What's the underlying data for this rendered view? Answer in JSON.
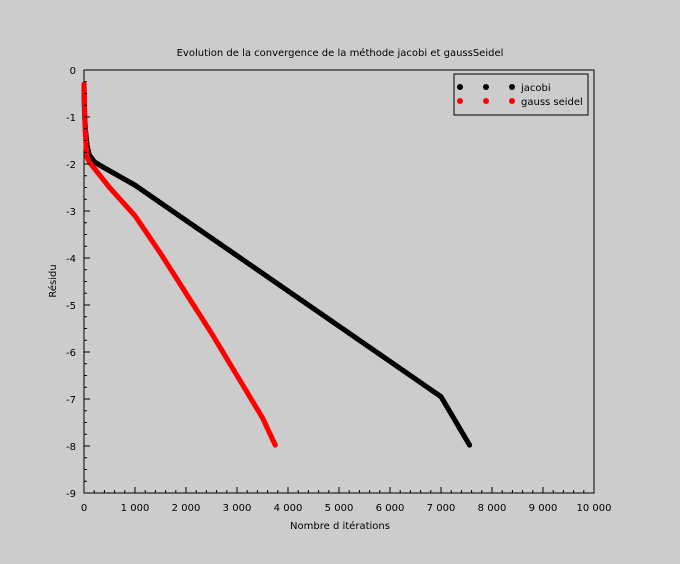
{
  "chart_data": {
    "type": "scatter",
    "title": "Evolution de la convergence de la méthode jacobi et gaussSeidel",
    "xlabel": "Nombre d itérations",
    "ylabel": "Résidu",
    "xlim": [
      0,
      10000
    ],
    "ylim": [
      -9,
      0
    ],
    "xticks": [
      0,
      1000,
      2000,
      3000,
      4000,
      5000,
      6000,
      7000,
      8000,
      9000,
      10000
    ],
    "xtick_labels": [
      "0",
      "1 000",
      "2 000",
      "3 000",
      "4 000",
      "5 000",
      "6 000",
      "7 000",
      "8 000",
      "9 000",
      "10 000"
    ],
    "yticks": [
      0,
      -1,
      -2,
      -3,
      -4,
      -5,
      -6,
      -7,
      -8,
      -9
    ],
    "ytick_labels": [
      "0",
      "-1",
      "-2",
      "-3",
      "-4",
      "-5",
      "-6",
      "-7",
      "-8",
      "-9"
    ],
    "legend_position": "top-right",
    "grid": false,
    "series": [
      {
        "name": "jacobi",
        "color": "#000000",
        "points": [
          [
            1,
            -0.4
          ],
          [
            10,
            -0.9
          ],
          [
            30,
            -1.3
          ],
          [
            60,
            -1.6
          ],
          [
            100,
            -1.8
          ],
          [
            200,
            -1.95
          ],
          [
            300,
            -2.02
          ],
          [
            1000,
            -2.45
          ],
          [
            2000,
            -3.2
          ],
          [
            3000,
            -3.95
          ],
          [
            4000,
            -4.7
          ],
          [
            5000,
            -5.45
          ],
          [
            6000,
            -6.2
          ],
          [
            7000,
            -6.95
          ],
          [
            7560,
            -7.98
          ]
        ]
      },
      {
        "name": "gauss seidel",
        "color": "#ff0000",
        "points": [
          [
            1,
            -0.3
          ],
          [
            10,
            -0.8
          ],
          [
            20,
            -1.2
          ],
          [
            40,
            -1.6
          ],
          [
            60,
            -1.85
          ],
          [
            100,
            -1.95
          ],
          [
            500,
            -2.5
          ],
          [
            1000,
            -3.1
          ],
          [
            1500,
            -3.9
          ],
          [
            2000,
            -4.75
          ],
          [
            2500,
            -5.6
          ],
          [
            3000,
            -6.5
          ],
          [
            3500,
            -7.4
          ],
          [
            3750,
            -7.98
          ]
        ]
      }
    ]
  }
}
